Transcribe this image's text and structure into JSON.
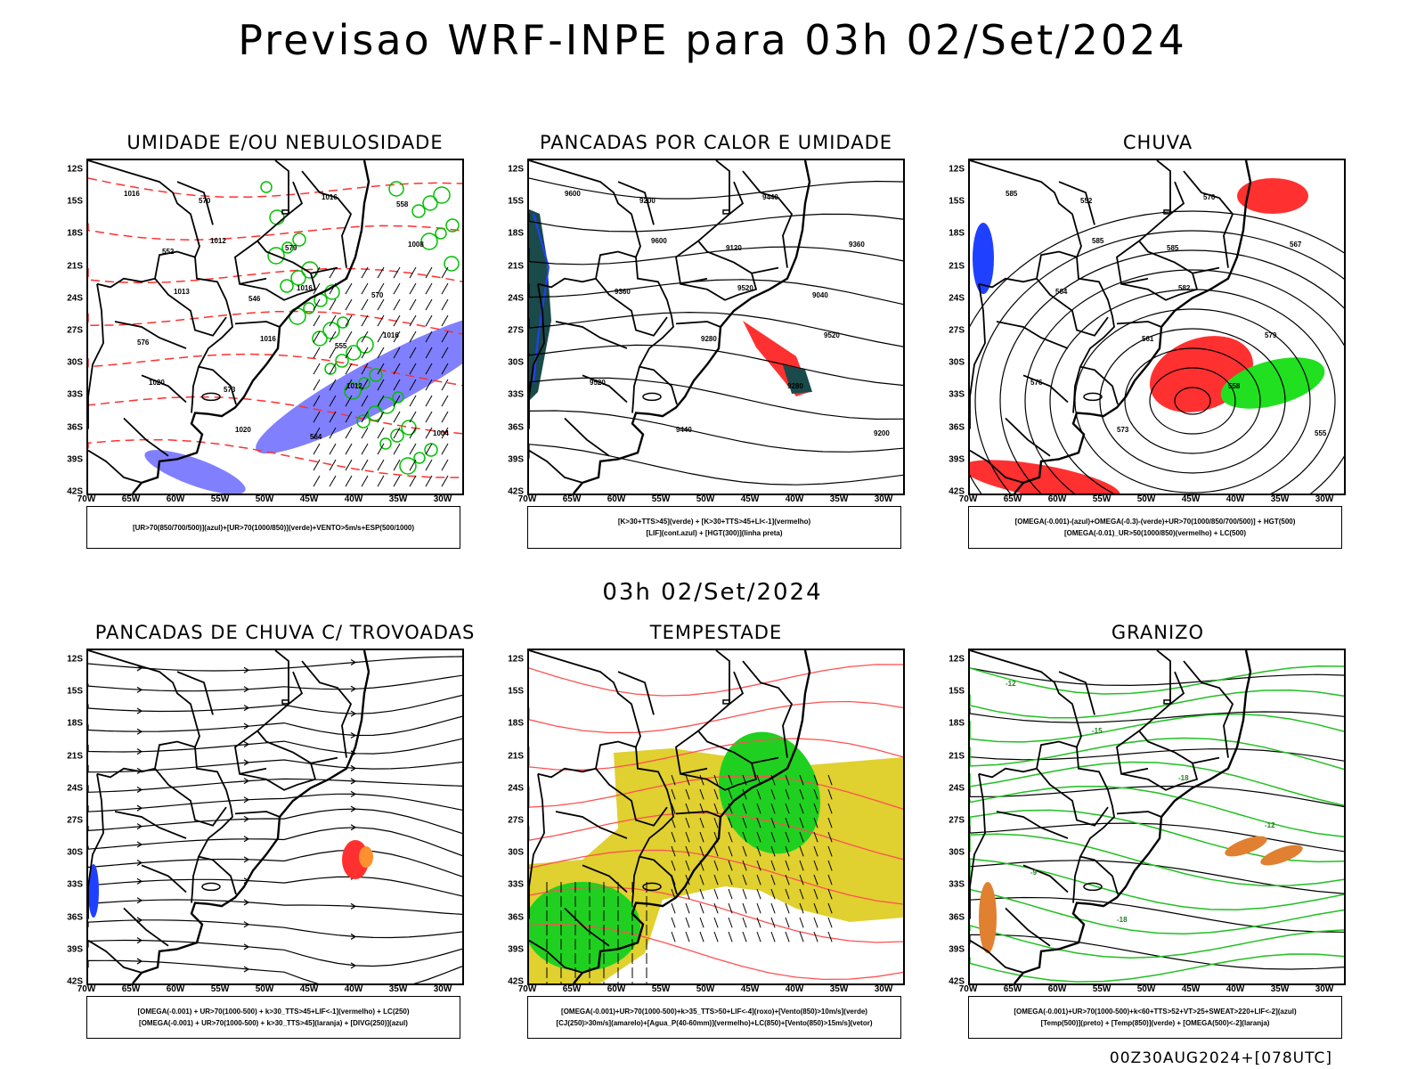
{
  "header": {
    "title": "Previsao WRF-INPE  para 03h 02/Set/2024",
    "mid_date": "03h 02/Set/2024",
    "run_info": "00Z30AUG2024+[078UTC]"
  },
  "axes": {
    "lat_ticks": [
      "12S",
      "15S",
      "18S",
      "21S",
      "24S",
      "27S",
      "30S",
      "33S",
      "36S",
      "39S",
      "42S"
    ],
    "lon_ticks": [
      "70W",
      "65W",
      "60W",
      "55W",
      "50W",
      "45W",
      "40W",
      "35W",
      "30W"
    ]
  },
  "panels": [
    {
      "id": "umidade",
      "title": "UMIDADE E/OU NEBULOSIDADE",
      "legend": [
        "[UR>70(850/700/500)](azul)+[UR>70(1000/850)](verde)+VENTO>5m/s+ESP(500/1000)"
      ],
      "colors": {
        "blue": "#8080ff",
        "green": "#00c000",
        "red": "#ff3030"
      }
    },
    {
      "id": "pancadas-calor",
      "title": "PANCADAS POR CALOR E UMIDADE",
      "legend": [
        "[K>30+TTS>45](verde) + [K>30+TTS>45+LI<-1](vermelho)",
        "[LIF](cont.azul) + [HGT(300)](linha preta)"
      ],
      "colors": {
        "teal": "#1a4a4a",
        "red": "#ff3030",
        "blue": "#2040ff"
      }
    },
    {
      "id": "chuva",
      "title": "CHUVA",
      "legend": [
        "[OMEGA(-0.001)-(azul)+OMEGA(-0.3)-(verde)+UR>70(1000/850/700/500)] + HGT(500)",
        "[OMEGA(-0.01)_UR>50(1000/850)(vermelho) + LC(500)"
      ],
      "colors": {
        "red": "#ff3030",
        "green": "#20e020",
        "blue": "#2040ff"
      }
    },
    {
      "id": "trovoadas",
      "title": "PANCADAS DE CHUVA C/ TROVOADAS",
      "legend": [
        "[OMEGA(-0.001) + UR>70(1000-500) + k>30_TTS>45+LIF<-1](vermelho) + LC(250)",
        "[OMEGA(-0.001) + UR>70(1000-500) + k>30_TTS>45](laranja) + [DIVG(250)](azul)"
      ],
      "colors": {
        "red": "#ff3030",
        "orange": "#ff9030",
        "blue": "#2040ff"
      }
    },
    {
      "id": "tempestade",
      "title": "TEMPESTADE",
      "legend": [
        "[OMEGA(-0.001)+UR>70(1000-500)+k>35_TTS>50+LIF<-4](roxo)+[Vento(850)>10m/s](verde)",
        "[CJ(250)>30m/s](amarelo)+[Agua_P(40-60mm)](vermelho)+LC(850)+[Vento(850)>15m/s](vetor)"
      ],
      "colors": {
        "yellow": "#e0d030",
        "green": "#20d020",
        "red": "#ff5050"
      }
    },
    {
      "id": "granizo",
      "title": "GRANIZO",
      "legend": [
        "[OMEGA(-0.001)+UR>70(1000-500)+k<60+TTS>52+VT>25+SWEAT>220+LIF<-2](azul)",
        "[Temp(500)](preto) + [Temp(850)](verde) + [OMEGA(500)<-2](laranja)"
      ],
      "colors": {
        "green": "#20c020",
        "orange": "#e08030"
      }
    }
  ],
  "contour_labels": {
    "umidade": [
      "1016",
      "1012",
      "1016",
      "1016",
      "1020",
      "1020",
      "1016",
      "1008",
      "1013",
      "1016",
      "1012",
      "1004",
      "570",
      "579",
      "570",
      "576",
      "573",
      "564",
      "558",
      "552",
      "546",
      "555"
    ],
    "pancadas-calor": [
      "9600",
      "9600",
      "9520",
      "9520",
      "9520",
      "9440",
      "9440",
      "9360",
      "9360",
      "9280",
      "9280",
      "9200",
      "9200",
      "9120",
      "9040"
    ],
    "chuva": [
      "585",
      "585",
      "582",
      "579",
      "576",
      "573",
      "570",
      "567",
      "564",
      "561",
      "558",
      "555",
      "552",
      "585"
    ],
    "granizo": [
      "-12",
      "-15",
      "-18",
      "-12",
      "-9",
      "-18"
    ]
  }
}
